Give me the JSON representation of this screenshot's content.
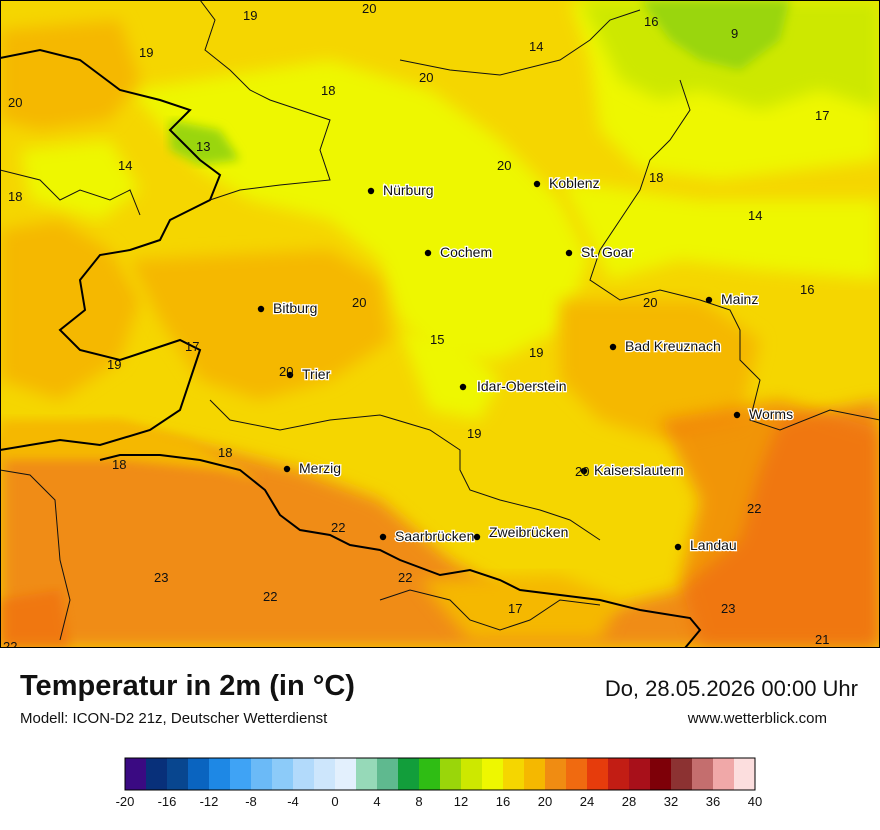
{
  "title": "Temperatur in 2m (in °C)",
  "subtitle": "Modell: ICON-D2 21z, Deutscher Wetterdienst",
  "datetime": "Do, 28.05.2026 00:00 Uhr",
  "website": "www.wetterblick.com",
  "cities": [
    {
      "name": "Nürburg"
    },
    {
      "name": "Koblenz"
    },
    {
      "name": "Cochem"
    },
    {
      "name": "St. Goar"
    },
    {
      "name": "Mainz"
    },
    {
      "name": "Bitburg"
    },
    {
      "name": "Bad Kreuznach"
    },
    {
      "name": "Trier"
    },
    {
      "name": "Idar-Oberstein"
    },
    {
      "name": "Worms"
    },
    {
      "name": "Merzig"
    },
    {
      "name": "Kaiserslautern"
    },
    {
      "name": "Saarbrücken"
    },
    {
      "name": "Zweibrücken"
    },
    {
      "name": "Landau"
    }
  ],
  "values": [
    "19",
    "20",
    "16",
    "9",
    "19",
    "14",
    "20",
    "20",
    "18",
    "17",
    "18",
    "14",
    "13",
    "20",
    "18",
    "18",
    "14",
    "20",
    "16",
    "20",
    "17",
    "15",
    "19",
    "19",
    "20",
    "19",
    "18",
    "18",
    "22",
    "22",
    "23",
    "22",
    "22",
    "17",
    "23",
    "21",
    "22",
    "20"
  ],
  "legend": {
    "ticks": [
      "-20",
      "-16",
      "-12",
      "-8",
      "-4",
      "0",
      "4",
      "8",
      "12",
      "16",
      "20",
      "24",
      "28",
      "32",
      "36",
      "40"
    ],
    "colors": [
      "#3a0a82",
      "#08307a",
      "#08468f",
      "#0a64c0",
      "#1e88e5",
      "#3fa3f5",
      "#6bbaf7",
      "#8ccbf9",
      "#b2dafb",
      "#cde6fc",
      "#e3f0fd",
      "#96d9b8",
      "#5fb98f",
      "#129e3b",
      "#2fbd14",
      "#9ad60a",
      "#cde800",
      "#eef700",
      "#f5d600",
      "#f5b800",
      "#f08c12",
      "#f06a10",
      "#e63c0c",
      "#c21d14",
      "#a8101a",
      "#7e0008",
      "#8c3232",
      "#c46e6e",
      "#f0a8a8",
      "#fcdede"
    ]
  }
}
